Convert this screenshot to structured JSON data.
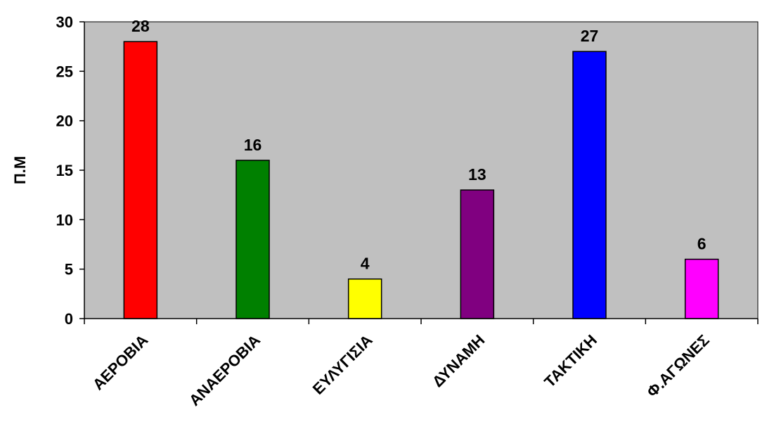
{
  "chart_data": {
    "type": "bar",
    "categories": [
      "ΑΕΡΟΒΙΑ",
      "ΑΝΑΕΡΟΒΙΑ",
      "ΕΥΛΥΓΙΣΙΑ",
      "ΔΥΝΑΜΗ",
      "ΤΑΚΤΙΚΗ",
      "Φ.ΑΓΩΝΕΣ"
    ],
    "values": [
      28,
      16,
      4,
      13,
      27,
      6
    ],
    "colors": [
      "#ff0000",
      "#008000",
      "#ffff00",
      "#800080",
      "#0000ff",
      "#ff00ff"
    ],
    "ylabel": "Π.Μ",
    "xlabel": "",
    "ylim": [
      0,
      30
    ],
    "yticks": [
      0,
      5,
      10,
      15,
      20,
      25,
      30
    ],
    "grid": false,
    "plot_background": "#c0c0c0",
    "data_labels": true
  }
}
